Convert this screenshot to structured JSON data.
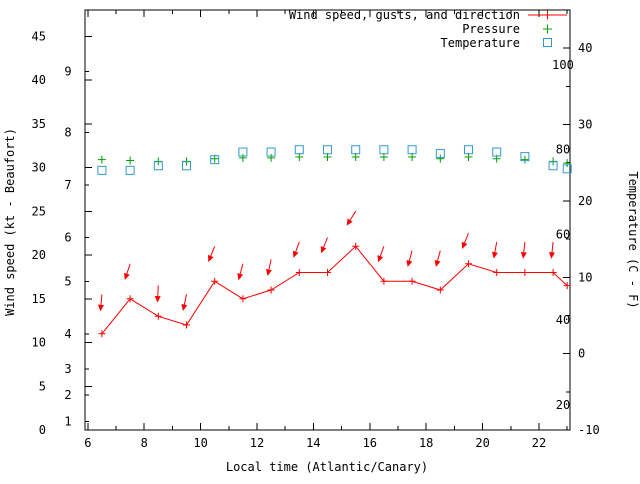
{
  "chart_data": {
    "type": "line",
    "title": "",
    "xlabel": "Local time (Atlantic/Canary)",
    "ylabel": "Wind speed (kt - Beaufort)",
    "y2label": "Temperature (C - F)",
    "legend_position": "top-right",
    "grid": false,
    "xlim": [
      5.9,
      23.1
    ],
    "ylim": [
      0,
      48
    ],
    "y2lim": [
      -10,
      45
    ],
    "x_ticks_major": [
      6,
      8,
      10,
      12,
      14,
      16,
      18,
      20,
      22
    ],
    "x_ticks_minor": [
      7,
      9,
      11,
      13,
      15,
      17,
      19,
      21,
      23
    ],
    "y_ticks": [
      0,
      5,
      10,
      15,
      20,
      25,
      30,
      35,
      40,
      45
    ],
    "beaufort_ticks": [
      {
        "label": "1",
        "kt": 1
      },
      {
        "label": "2",
        "kt": 4
      },
      {
        "label": "3",
        "kt": 7
      },
      {
        "label": "4",
        "kt": 11
      },
      {
        "label": "5",
        "kt": 17
      },
      {
        "label": "6",
        "kt": 22
      },
      {
        "label": "7",
        "kt": 28
      },
      {
        "label": "8",
        "kt": 34
      },
      {
        "label": "9",
        "kt": 41
      }
    ],
    "y2_ticks": [
      -10,
      0,
      10,
      20,
      30,
      40
    ],
    "y2_ticks_minor": [
      -5,
      5,
      15,
      25,
      35
    ],
    "fahrenheit_ticks": [
      {
        "label": "20",
        "c": -6.7
      },
      {
        "label": "40",
        "c": 4.4
      },
      {
        "label": "60",
        "c": 15.6
      },
      {
        "label": "80",
        "c": 26.7
      },
      {
        "label": "100",
        "c": 37.8
      }
    ],
    "colors": {
      "wind": "#ff0000",
      "pressure": "#00a000",
      "temperature": "#3399cc",
      "axis": "#000000"
    },
    "x": [
      6.5,
      7.5,
      8.5,
      9.5,
      10.5,
      11.5,
      12.5,
      13.5,
      14.5,
      15.5,
      16.5,
      17.5,
      18.5,
      19.5,
      20.5,
      21.5,
      22.5,
      23
    ],
    "series": [
      {
        "name": "Wind speed, gusts, and direction",
        "marker": "line-plus",
        "axis": "y1",
        "unit": "kt",
        "values": [
          11,
          15,
          13,
          12,
          17,
          15,
          16,
          18,
          18,
          21,
          17,
          17,
          16,
          19,
          18,
          18,
          18,
          16.5
        ]
      },
      {
        "name": "Pressure",
        "marker": "plus",
        "axis": "y1",
        "values": [
          30.9,
          30.8,
          30.7,
          30.7,
          31.0,
          31.1,
          31.1,
          31.2,
          31.2,
          31.2,
          31.2,
          31.2,
          31.0,
          31.2,
          31.0,
          30.9,
          30.7,
          30.5
        ]
      },
      {
        "name": "Temperature",
        "marker": "open-square",
        "axis": "y2",
        "unit": "C",
        "values": [
          24.0,
          24.0,
          24.6,
          24.6,
          25.4,
          26.4,
          26.4,
          26.7,
          26.7,
          26.7,
          26.7,
          26.7,
          26.2,
          26.7,
          26.4,
          25.8,
          24.6,
          24.2
        ]
      }
    ],
    "wind_arrows": [
      {
        "t": 6.5,
        "gust": 15.5,
        "angle": 5
      },
      {
        "t": 7.5,
        "gust": 19,
        "angle": 18
      },
      {
        "t": 8.5,
        "gust": 16.5,
        "angle": 3
      },
      {
        "t": 9.5,
        "gust": 15.5,
        "angle": 12
      },
      {
        "t": 10.5,
        "gust": 21,
        "angle": 22
      },
      {
        "t": 11.5,
        "gust": 19,
        "angle": 15
      },
      {
        "t": 12.5,
        "gust": 19.5,
        "angle": 12
      },
      {
        "t": 13.5,
        "gust": 21.5,
        "angle": 20
      },
      {
        "t": 14.5,
        "gust": 22,
        "angle": 22
      },
      {
        "t": 15.5,
        "gust": 25,
        "angle": 32
      },
      {
        "t": 16.5,
        "gust": 21,
        "angle": 20
      },
      {
        "t": 17.5,
        "gust": 20.5,
        "angle": 15
      },
      {
        "t": 18.5,
        "gust": 20.5,
        "angle": 15
      },
      {
        "t": 19.5,
        "gust": 22.5,
        "angle": 22
      },
      {
        "t": 20.5,
        "gust": 21.5,
        "angle": 10
      },
      {
        "t": 21.5,
        "gust": 21.5,
        "angle": 6
      },
      {
        "t": 22.5,
        "gust": 21.5,
        "angle": 6
      }
    ]
  }
}
